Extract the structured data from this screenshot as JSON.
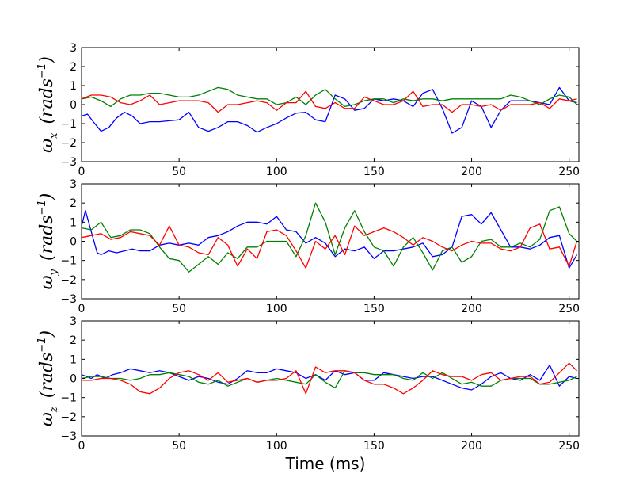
{
  "chart_data": [
    {
      "type": "line",
      "ylabel": {
        "symbol": "ω",
        "subscript": "x",
        "unit": "(rads",
        "exponent": "−1",
        "close": ")"
      },
      "xlabel": "",
      "xlim": [
        0,
        255
      ],
      "ylim": [
        -3,
        3
      ],
      "xticks": [
        0,
        50,
        100,
        150,
        200,
        250
      ],
      "yticks": [
        -3,
        -2,
        -1,
        0,
        1,
        2,
        3
      ],
      "series": [
        {
          "name": "blue",
          "color": "#0000ff",
          "x": [
            0,
            3,
            6,
            10,
            14,
            18,
            22,
            26,
            30,
            35,
            40,
            45,
            50,
            55,
            60,
            65,
            70,
            75,
            80,
            85,
            90,
            95,
            100,
            105,
            110,
            115,
            120,
            125,
            130,
            135,
            140,
            145,
            150,
            155,
            160,
            165,
            170,
            175,
            180,
            185,
            190,
            195,
            200,
            205,
            210,
            215,
            220,
            225,
            230,
            235,
            240,
            245,
            250,
            254
          ],
          "y": [
            -0.6,
            -0.5,
            -0.9,
            -1.4,
            -1.2,
            -0.7,
            -0.4,
            -0.6,
            -1.0,
            -0.9,
            -0.9,
            -0.85,
            -0.8,
            -0.4,
            -1.2,
            -1.4,
            -1.2,
            -0.9,
            -0.9,
            -1.1,
            -1.45,
            -1.2,
            -1.0,
            -0.7,
            -0.45,
            -0.4,
            -0.8,
            -0.9,
            0.5,
            0.3,
            -0.3,
            -0.2,
            0.3,
            0.2,
            0.3,
            0.2,
            -0.1,
            0.6,
            0.8,
            -0.2,
            -1.5,
            -1.2,
            0.2,
            -0.1,
            -1.2,
            -0.3,
            0.2,
            0.2,
            0.2,
            0.1,
            0.0,
            0.9,
            0.2,
            0.1
          ]
        },
        {
          "name": "green",
          "color": "#008000",
          "x": [
            0,
            5,
            10,
            15,
            20,
            25,
            30,
            35,
            40,
            45,
            50,
            55,
            60,
            65,
            70,
            75,
            80,
            85,
            90,
            95,
            100,
            105,
            110,
            115,
            120,
            125,
            130,
            135,
            140,
            145,
            150,
            155,
            160,
            165,
            170,
            175,
            180,
            185,
            190,
            195,
            200,
            205,
            210,
            215,
            220,
            225,
            230,
            235,
            240,
            245,
            250,
            254
          ],
          "y": [
            0.3,
            0.4,
            0.2,
            -0.1,
            0.3,
            0.5,
            0.5,
            0.6,
            0.6,
            0.5,
            0.4,
            0.4,
            0.5,
            0.7,
            0.9,
            0.8,
            0.5,
            0.4,
            0.3,
            0.3,
            0.0,
            0.1,
            0.4,
            0.0,
            0.5,
            0.8,
            0.3,
            -0.1,
            0.0,
            0.2,
            0.3,
            0.3,
            0.1,
            0.3,
            0.2,
            0.3,
            0.3,
            0.2,
            0.3,
            0.3,
            0.3,
            0.3,
            0.3,
            0.3,
            0.5,
            0.4,
            0.2,
            0.0,
            0.3,
            0.5,
            0.4,
            0.0
          ]
        },
        {
          "name": "red",
          "color": "#ff0000",
          "x": [
            0,
            5,
            10,
            15,
            20,
            25,
            30,
            35,
            40,
            45,
            50,
            55,
            60,
            65,
            70,
            75,
            80,
            85,
            90,
            95,
            100,
            105,
            110,
            115,
            120,
            125,
            130,
            135,
            140,
            145,
            150,
            155,
            160,
            165,
            170,
            175,
            180,
            185,
            190,
            195,
            200,
            205,
            210,
            215,
            220,
            225,
            230,
            235,
            240,
            245,
            250,
            254
          ],
          "y": [
            0.3,
            0.5,
            0.5,
            0.4,
            0.1,
            0.0,
            0.2,
            0.5,
            0.0,
            0.1,
            0.2,
            0.2,
            0.2,
            0.1,
            -0.4,
            0.0,
            0.0,
            0.1,
            0.2,
            0.1,
            -0.3,
            0.1,
            0.1,
            0.7,
            -0.1,
            -0.2,
            0.1,
            -0.2,
            -0.2,
            0.4,
            0.2,
            0.0,
            0.0,
            0.2,
            0.7,
            -0.1,
            0.0,
            0.0,
            -0.4,
            0.0,
            0.0,
            -0.1,
            0.0,
            -0.3,
            0.0,
            0.0,
            0.0,
            0.1,
            -0.2,
            0.3,
            0.2,
            0.3
          ]
        }
      ]
    },
    {
      "type": "line",
      "ylabel": {
        "symbol": "ω",
        "subscript": "y",
        "unit": "(rads",
        "exponent": "−1",
        "close": ")"
      },
      "xlabel": "",
      "xlim": [
        0,
        255
      ],
      "ylim": [
        -3,
        3
      ],
      "xticks": [
        0,
        50,
        100,
        150,
        200,
        250
      ],
      "yticks": [
        -3,
        -2,
        -1,
        0,
        1,
        2,
        3
      ],
      "series": [
        {
          "name": "blue",
          "color": "#0000ff",
          "x": [
            0,
            2,
            5,
            8,
            10,
            14,
            18,
            22,
            26,
            30,
            35,
            40,
            45,
            50,
            55,
            60,
            65,
            70,
            75,
            80,
            85,
            90,
            95,
            100,
            105,
            110,
            115,
            120,
            125,
            130,
            135,
            140,
            145,
            150,
            155,
            160,
            165,
            170,
            175,
            180,
            185,
            190,
            195,
            200,
            205,
            210,
            215,
            220,
            225,
            230,
            235,
            240,
            245,
            250,
            254
          ],
          "y": [
            0.8,
            1.6,
            0.5,
            -0.6,
            -0.7,
            -0.5,
            -0.6,
            -0.5,
            -0.4,
            -0.5,
            -0.5,
            -0.2,
            -0.1,
            -0.2,
            -0.1,
            -0.2,
            0.2,
            0.3,
            0.5,
            0.8,
            1.0,
            1.0,
            0.9,
            1.3,
            0.6,
            0.5,
            -0.1,
            0.2,
            -0.1,
            -0.8,
            -0.4,
            -0.5,
            -0.3,
            -0.9,
            -0.5,
            -0.5,
            -0.4,
            -0.3,
            -0.1,
            -0.8,
            -0.7,
            -0.3,
            1.3,
            1.4,
            0.9,
            1.5,
            0.6,
            -0.3,
            -0.3,
            -0.4,
            -0.2,
            0.2,
            0.3,
            -1.4,
            -0.7
          ]
        },
        {
          "name": "green",
          "color": "#008000",
          "x": [
            0,
            5,
            10,
            15,
            20,
            25,
            30,
            35,
            40,
            45,
            50,
            55,
            60,
            65,
            70,
            75,
            80,
            85,
            90,
            95,
            100,
            105,
            110,
            115,
            120,
            125,
            130,
            135,
            140,
            145,
            150,
            155,
            160,
            165,
            170,
            175,
            180,
            185,
            190,
            195,
            200,
            205,
            210,
            215,
            220,
            225,
            230,
            235,
            240,
            245,
            250,
            254
          ],
          "y": [
            0.7,
            0.6,
            1.0,
            0.2,
            0.3,
            0.6,
            0.6,
            0.4,
            -0.3,
            -0.9,
            -1.0,
            -1.6,
            -1.2,
            -0.8,
            -1.2,
            -0.6,
            -0.9,
            -0.3,
            -0.3,
            0.0,
            0.0,
            0.0,
            -0.8,
            0.3,
            2.0,
            1.0,
            -0.7,
            0.7,
            1.6,
            0.5,
            -0.3,
            -0.5,
            -1.3,
            -0.3,
            0.2,
            -0.6,
            -1.5,
            -0.5,
            -0.3,
            -1.1,
            -0.8,
            0.0,
            0.1,
            -0.3,
            -0.3,
            -0.1,
            -0.3,
            0.1,
            1.6,
            1.8,
            0.4,
            0.0
          ]
        },
        {
          "name": "red",
          "color": "#ff0000",
          "x": [
            0,
            5,
            10,
            15,
            20,
            25,
            30,
            35,
            40,
            45,
            50,
            55,
            60,
            65,
            70,
            75,
            80,
            85,
            90,
            95,
            100,
            105,
            110,
            115,
            120,
            125,
            130,
            135,
            140,
            145,
            150,
            155,
            160,
            165,
            170,
            175,
            180,
            185,
            190,
            195,
            200,
            205,
            210,
            215,
            220,
            225,
            230,
            235,
            240,
            245,
            250,
            254
          ],
          "y": [
            0.2,
            0.3,
            0.4,
            0.1,
            0.2,
            0.5,
            0.4,
            0.3,
            -0.2,
            0.8,
            -0.2,
            -0.3,
            -0.6,
            -0.7,
            0.2,
            -0.2,
            -1.3,
            -0.4,
            -0.9,
            0.5,
            0.6,
            0.3,
            -0.5,
            -1.4,
            0.0,
            -0.4,
            0.3,
            -0.7,
            0.8,
            0.3,
            0.5,
            0.7,
            0.5,
            0.2,
            -0.2,
            0.2,
            0.0,
            -0.3,
            -0.5,
            -0.2,
            0.0,
            -0.1,
            -0.1,
            -0.4,
            -0.5,
            -0.3,
            0.7,
            0.9,
            -0.4,
            -0.3,
            -1.3,
            0.0
          ]
        }
      ]
    },
    {
      "type": "line",
      "ylabel": {
        "symbol": "ω",
        "subscript": "z",
        "unit": "(rads",
        "exponent": "−1",
        "close": ")"
      },
      "xlabel": "Time (ms)",
      "xlim": [
        0,
        255
      ],
      "ylim": [
        -3,
        3
      ],
      "xticks": [
        0,
        50,
        100,
        150,
        200,
        250
      ],
      "yticks": [
        -3,
        -2,
        -1,
        0,
        1,
        2,
        3
      ],
      "series": [
        {
          "name": "blue",
          "color": "#0000ff",
          "x": [
            0,
            5,
            8,
            12,
            16,
            20,
            25,
            30,
            35,
            40,
            45,
            50,
            55,
            60,
            65,
            70,
            75,
            80,
            85,
            90,
            95,
            100,
            105,
            110,
            115,
            120,
            125,
            130,
            135,
            140,
            145,
            150,
            155,
            160,
            165,
            170,
            175,
            180,
            185,
            190,
            195,
            200,
            205,
            210,
            215,
            220,
            225,
            230,
            235,
            240,
            245,
            250,
            254
          ],
          "y": [
            0.2,
            0.0,
            0.2,
            0.0,
            0.2,
            0.3,
            0.5,
            0.4,
            0.3,
            0.4,
            0.3,
            0.1,
            -0.1,
            0.1,
            0.0,
            -0.2,
            -0.3,
            0.0,
            0.4,
            0.3,
            0.3,
            0.5,
            0.4,
            0.3,
            0.0,
            0.2,
            -0.1,
            0.4,
            0.2,
            0.3,
            -0.1,
            -0.1,
            0.3,
            0.2,
            0.1,
            0.0,
            0.1,
            0.1,
            -0.1,
            -0.3,
            -0.5,
            -0.6,
            -0.3,
            0.1,
            0.3,
            0.0,
            -0.1,
            0.2,
            -0.1,
            0.7,
            -0.4,
            0.1,
            0.0
          ]
        },
        {
          "name": "green",
          "color": "#008000",
          "x": [
            0,
            5,
            10,
            15,
            20,
            25,
            30,
            35,
            40,
            45,
            50,
            55,
            60,
            65,
            70,
            75,
            80,
            85,
            90,
            95,
            100,
            105,
            110,
            115,
            120,
            125,
            130,
            135,
            140,
            145,
            150,
            155,
            160,
            165,
            170,
            175,
            180,
            185,
            190,
            195,
            200,
            205,
            210,
            215,
            220,
            225,
            230,
            235,
            240,
            245,
            250,
            254
          ],
          "y": [
            0.0,
            0.1,
            0.1,
            0.0,
            0.0,
            -0.1,
            0.0,
            0.2,
            0.2,
            0.3,
            0.2,
            0.1,
            -0.2,
            -0.3,
            -0.1,
            -0.4,
            -0.2,
            0.0,
            -0.2,
            -0.1,
            0.0,
            -0.1,
            -0.2,
            -0.3,
            0.2,
            -0.2,
            -0.5,
            0.4,
            0.3,
            0.3,
            0.2,
            0.2,
            0.2,
            0.0,
            -0.1,
            0.3,
            0.0,
            0.3,
            0.0,
            -0.3,
            -0.2,
            -0.4,
            -0.4,
            -0.1,
            0.0,
            0.0,
            0.0,
            -0.3,
            -0.3,
            -0.2,
            -0.1,
            0.1
          ]
        },
        {
          "name": "red",
          "color": "#ff0000",
          "x": [
            0,
            5,
            10,
            15,
            20,
            25,
            30,
            35,
            40,
            45,
            50,
            55,
            60,
            65,
            70,
            75,
            80,
            85,
            90,
            95,
            100,
            105,
            110,
            115,
            120,
            125,
            130,
            135,
            140,
            145,
            150,
            155,
            160,
            165,
            170,
            175,
            180,
            185,
            190,
            195,
            200,
            205,
            210,
            215,
            220,
            225,
            230,
            235,
            240,
            245,
            250,
            254
          ],
          "y": [
            -0.1,
            -0.1,
            0.0,
            0.0,
            -0.1,
            -0.3,
            -0.7,
            -0.8,
            -0.5,
            0.0,
            0.3,
            0.4,
            0.2,
            -0.1,
            0.3,
            -0.2,
            -0.1,
            0.0,
            -0.2,
            -0.1,
            -0.1,
            0.0,
            0.4,
            -0.8,
            0.6,
            0.3,
            0.4,
            0.4,
            0.3,
            -0.1,
            -0.3,
            -0.3,
            -0.5,
            -0.8,
            -0.5,
            -0.1,
            0.4,
            0.2,
            0.1,
            0.1,
            -0.1,
            0.2,
            0.3,
            -0.1,
            0.0,
            0.1,
            0.1,
            -0.3,
            -0.2,
            0.3,
            0.8,
            0.4
          ]
        }
      ]
    }
  ]
}
